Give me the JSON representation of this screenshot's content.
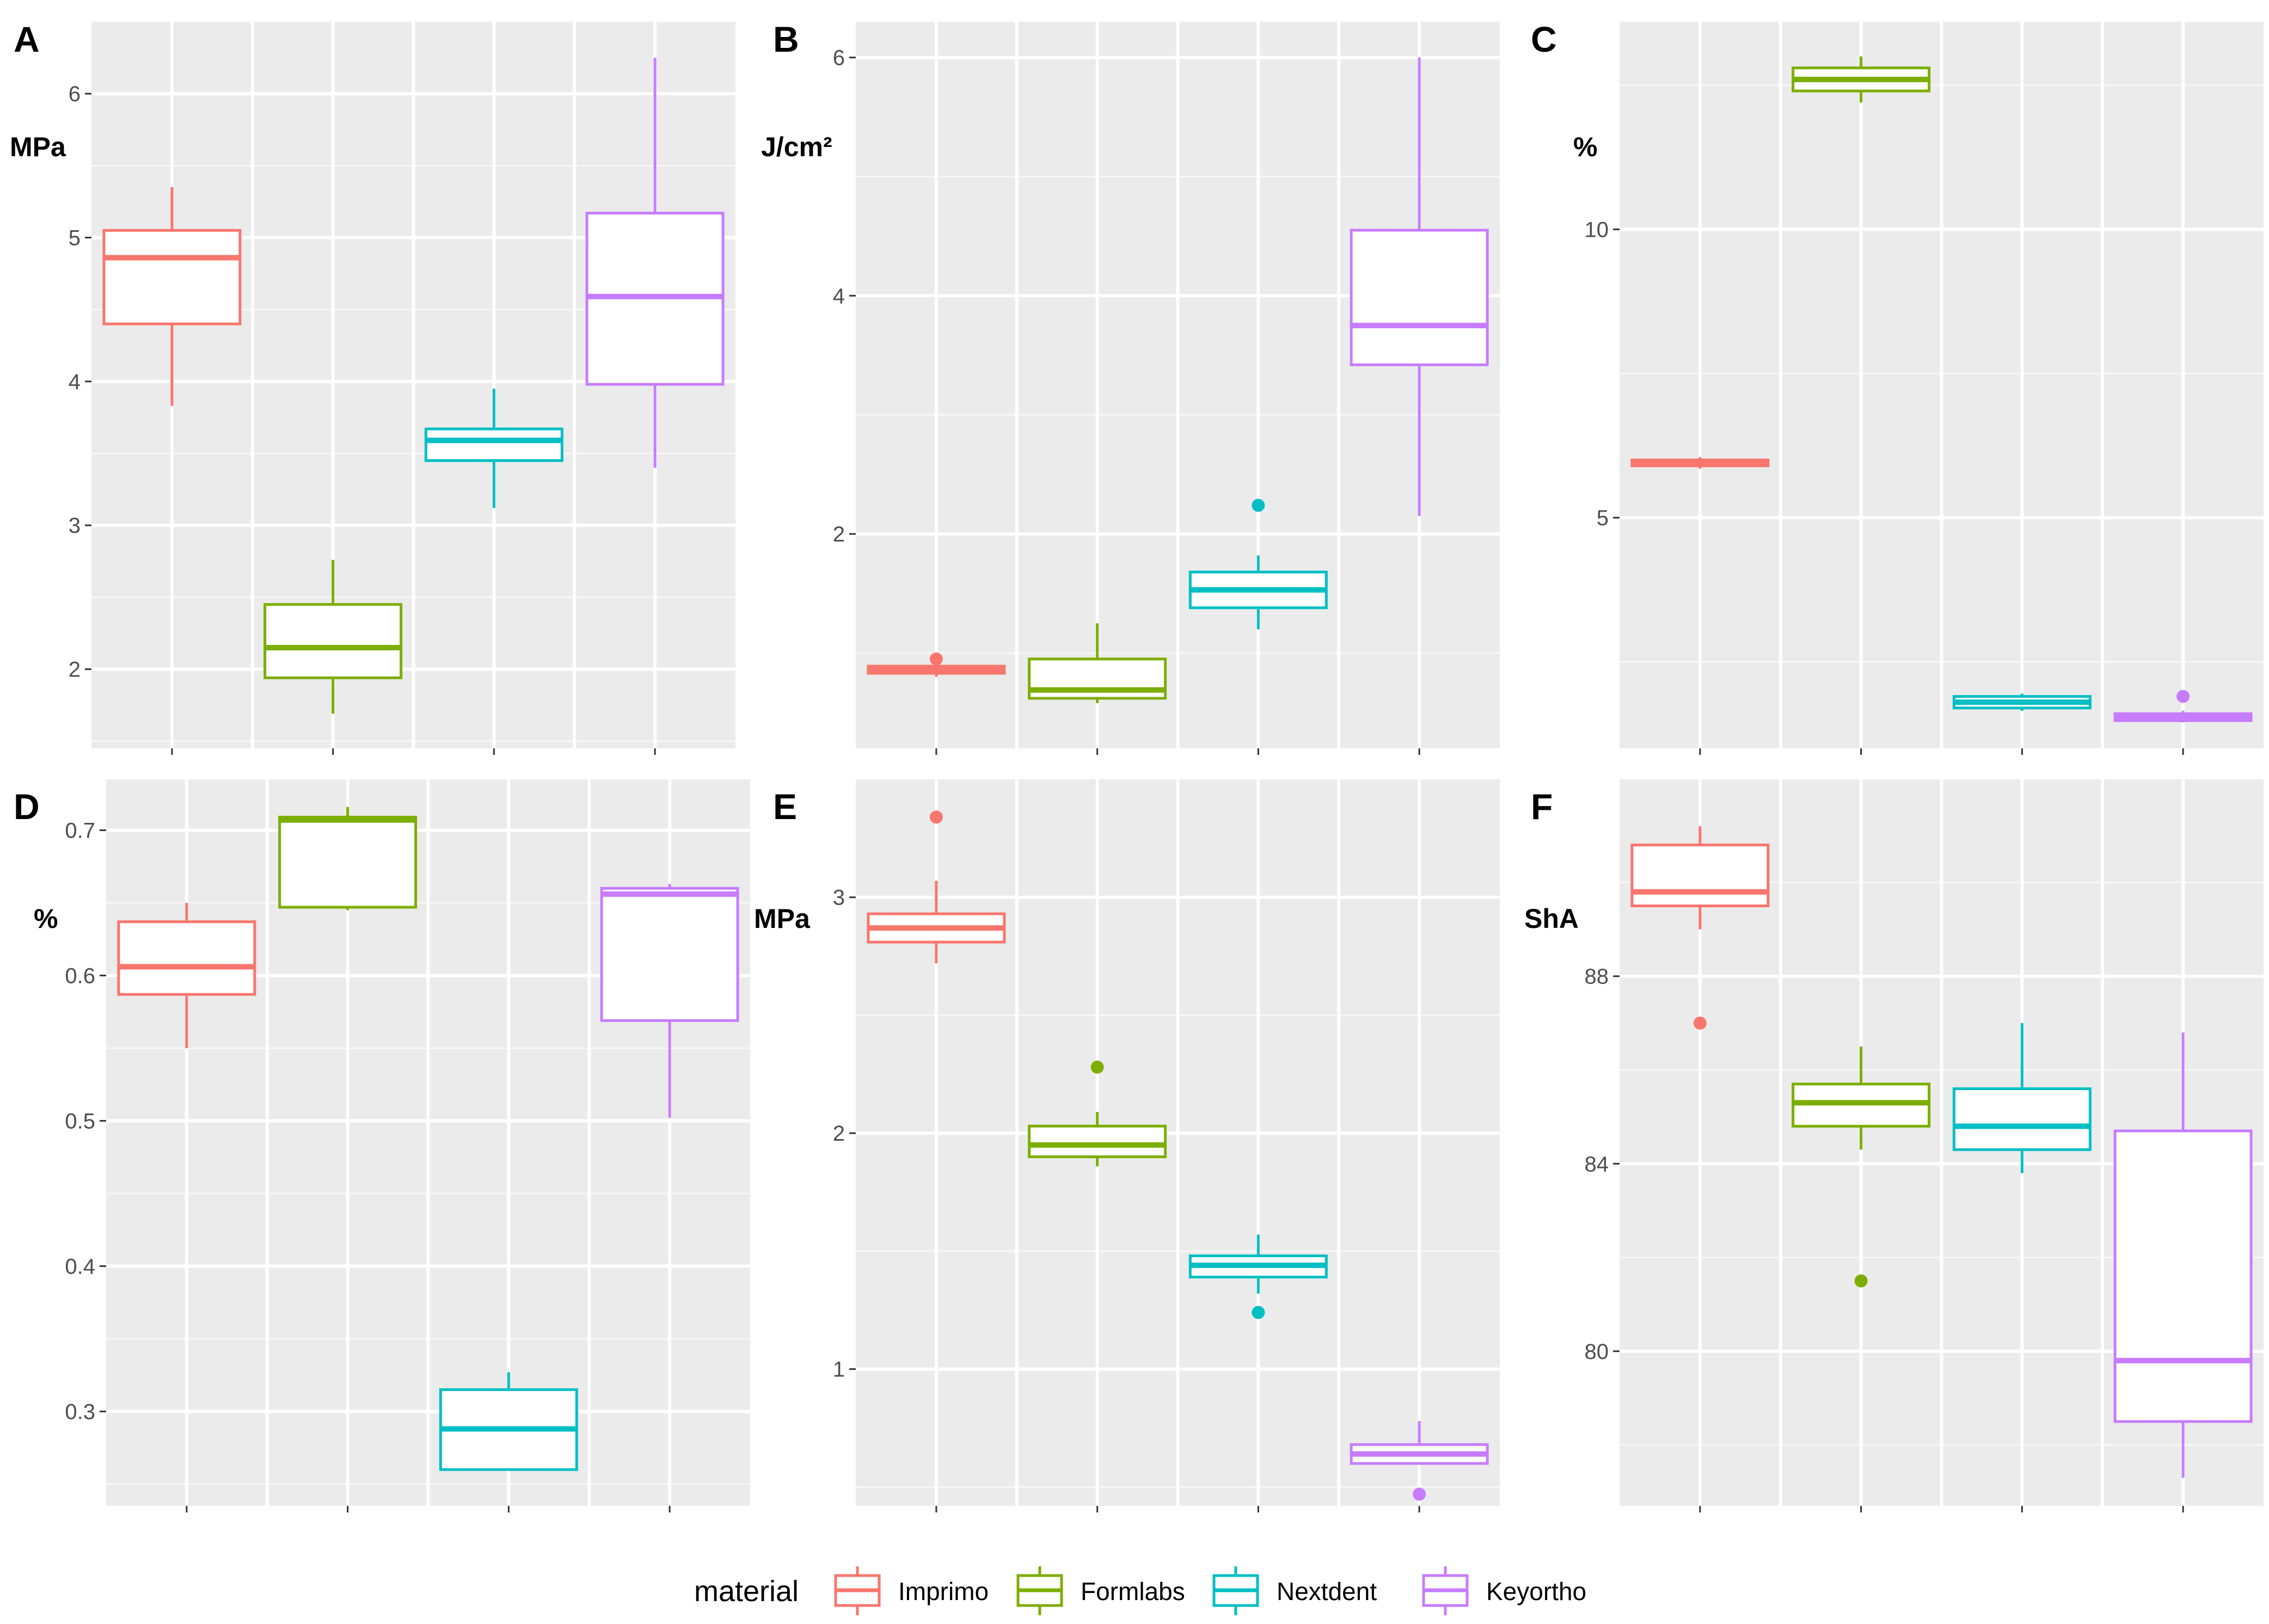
{
  "colors": {
    "Imprimo": "#F8766D",
    "Formlabs": "#7CAE00",
    "Nextdent": "#00BFC4",
    "Keyortho": "#C77CFF",
    "panel_bg": "#EBEBEB",
    "grid": "#FFFFFF"
  },
  "legend": {
    "title": "material",
    "items": [
      {
        "label": "Imprimo",
        "color_key": "Imprimo"
      },
      {
        "label": "Formlabs",
        "color_key": "Formlabs"
      },
      {
        "label": "Nextdent",
        "color_key": "Nextdent"
      },
      {
        "label": "Keyortho",
        "color_key": "Keyortho"
      }
    ]
  },
  "chart_data": [
    {
      "panel": "A",
      "type": "boxplot",
      "ylabel": "MPa",
      "yticks": [
        2,
        3,
        4,
        5,
        6
      ],
      "ylim": [
        1.45,
        6.5
      ],
      "categories": [
        "Imprimo",
        "Formlabs",
        "Nextdent",
        "Keyortho"
      ],
      "boxes": [
        {
          "material": "Imprimo",
          "min": 3.83,
          "q1": 4.4,
          "median": 4.86,
          "q3": 5.05,
          "max": 5.35,
          "outliers": []
        },
        {
          "material": "Formlabs",
          "min": 1.69,
          "q1": 1.94,
          "median": 2.15,
          "q3": 2.45,
          "max": 2.76,
          "outliers": []
        },
        {
          "material": "Nextdent",
          "min": 3.12,
          "q1": 3.45,
          "median": 3.59,
          "q3": 3.67,
          "max": 3.95,
          "outliers": []
        },
        {
          "material": "Keyortho",
          "min": 3.4,
          "q1": 3.98,
          "median": 4.59,
          "q3": 5.17,
          "max": 6.25,
          "outliers": []
        }
      ]
    },
    {
      "panel": "B",
      "type": "boxplot",
      "ylabel": "J/cm²",
      "yticks": [
        2,
        4,
        6
      ],
      "ylim": [
        0.2,
        6.3
      ],
      "categories": [
        "Imprimo",
        "Formlabs",
        "Nextdent",
        "Keyortho"
      ],
      "boxes": [
        {
          "material": "Imprimo",
          "min": 0.8,
          "q1": 0.83,
          "median": 0.86,
          "q3": 0.89,
          "max": 0.93,
          "outliers": [
            0.95
          ]
        },
        {
          "material": "Formlabs",
          "min": 0.58,
          "q1": 0.62,
          "median": 0.69,
          "q3": 0.95,
          "max": 1.25,
          "outliers": []
        },
        {
          "material": "Nextdent",
          "min": 1.2,
          "q1": 1.38,
          "median": 1.53,
          "q3": 1.68,
          "max": 1.82,
          "outliers": [
            2.24
          ]
        },
        {
          "material": "Keyortho",
          "min": 2.15,
          "q1": 3.42,
          "median": 3.75,
          "q3": 4.55,
          "max": 6.0,
          "outliers": []
        }
      ]
    },
    {
      "panel": "C",
      "type": "boxplot",
      "ylabel": "%",
      "yticks": [
        5,
        10
      ],
      "ylim": [
        1.0,
        13.6
      ],
      "categories": [
        "Imprimo",
        "Formlabs",
        "Nextdent",
        "Keyortho"
      ],
      "boxes": [
        {
          "material": "Imprimo",
          "min": 5.85,
          "q1": 5.9,
          "median": 5.95,
          "q3": 6.0,
          "max": 6.05,
          "outliers": []
        },
        {
          "material": "Formlabs",
          "min": 12.2,
          "q1": 12.4,
          "median": 12.6,
          "q3": 12.8,
          "max": 13.0,
          "outliers": []
        },
        {
          "material": "Nextdent",
          "min": 1.65,
          "q1": 1.7,
          "median": 1.8,
          "q3": 1.9,
          "max": 1.95,
          "outliers": []
        },
        {
          "material": "Keyortho",
          "min": 1.45,
          "q1": 1.48,
          "median": 1.55,
          "q3": 1.6,
          "max": 1.65,
          "outliers": [
            1.9
          ]
        }
      ]
    },
    {
      "panel": "D",
      "type": "boxplot",
      "ylabel": "%",
      "yticks": [
        0.3,
        0.4,
        0.5,
        0.6,
        0.7
      ],
      "ylim": [
        0.235,
        0.735
      ],
      "categories": [
        "Imprimo",
        "Formlabs",
        "Nextdent",
        "Keyortho"
      ],
      "boxes": [
        {
          "material": "Imprimo",
          "min": 0.55,
          "q1": 0.587,
          "median": 0.606,
          "q3": 0.637,
          "max": 0.65,
          "outliers": []
        },
        {
          "material": "Formlabs",
          "min": 0.645,
          "q1": 0.647,
          "median": 0.707,
          "q3": 0.709,
          "max": 0.716,
          "outliers": []
        },
        {
          "material": "Nextdent",
          "min": 0.26,
          "q1": 0.26,
          "median": 0.288,
          "q3": 0.315,
          "max": 0.327,
          "outliers": []
        },
        {
          "material": "Keyortho",
          "min": 0.502,
          "q1": 0.569,
          "median": 0.656,
          "q3": 0.66,
          "max": 0.663,
          "outliers": []
        }
      ]
    },
    {
      "panel": "E",
      "type": "boxplot",
      "ylabel": "MPa",
      "yticks": [
        1,
        2,
        3
      ],
      "ylim": [
        0.42,
        3.5
      ],
      "categories": [
        "Imprimo",
        "Formlabs",
        "Nextdent",
        "Keyortho"
      ],
      "boxes": [
        {
          "material": "Imprimo",
          "min": 2.72,
          "q1": 2.81,
          "median": 2.87,
          "q3": 2.93,
          "max": 3.07,
          "outliers": [
            3.34
          ]
        },
        {
          "material": "Formlabs",
          "min": 1.86,
          "q1": 1.9,
          "median": 1.95,
          "q3": 2.03,
          "max": 2.09,
          "outliers": [
            2.28
          ]
        },
        {
          "material": "Nextdent",
          "min": 1.32,
          "q1": 1.39,
          "median": 1.44,
          "q3": 1.48,
          "max": 1.57,
          "outliers": [
            1.24
          ]
        },
        {
          "material": "Keyortho",
          "min": 0.6,
          "q1": 0.6,
          "median": 0.64,
          "q3": 0.68,
          "max": 0.78,
          "outliers": [
            0.47
          ]
        }
      ]
    },
    {
      "panel": "F",
      "type": "boxplot",
      "ylabel": "ShA",
      "yticks": [
        80,
        84,
        88
      ],
      "ylim": [
        76.7,
        92.2
      ],
      "categories": [
        "Imprimo",
        "Formlabs",
        "Nextdent",
        "Keyortho"
      ],
      "boxes": [
        {
          "material": "Imprimo",
          "min": 89.0,
          "q1": 89.5,
          "median": 89.8,
          "q3": 90.8,
          "max": 91.2,
          "outliers": [
            87.0
          ]
        },
        {
          "material": "Formlabs",
          "min": 84.3,
          "q1": 84.8,
          "median": 85.3,
          "q3": 85.7,
          "max": 86.5,
          "outliers": [
            81.5
          ]
        },
        {
          "material": "Nextdent",
          "min": 83.8,
          "q1": 84.3,
          "median": 84.8,
          "q3": 85.6,
          "max": 87.0,
          "outliers": []
        },
        {
          "material": "Keyortho",
          "min": 77.3,
          "q1": 78.5,
          "median": 79.8,
          "q3": 84.7,
          "max": 86.8,
          "outliers": []
        }
      ]
    }
  ]
}
